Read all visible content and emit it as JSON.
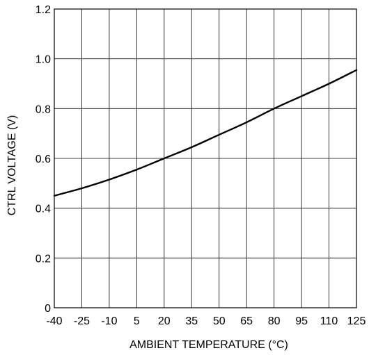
{
  "chart_data": {
    "type": "line",
    "xlabel": "AMBIENT TEMPERATURE (°C)",
    "ylabel": "CTRL VOLTAGE (V)",
    "xlim": [
      -40,
      125
    ],
    "ylim": [
      0,
      1.2
    ],
    "x_ticks": [
      -40,
      -25,
      -10,
      5,
      20,
      35,
      50,
      65,
      80,
      95,
      110,
      125
    ],
    "x_tick_labels": [
      "-40",
      "-25",
      "-10",
      "5",
      "20",
      "35",
      "50",
      "65",
      "80",
      "95",
      "110",
      "125"
    ],
    "y_ticks": [
      0,
      0.2,
      0.4,
      0.6,
      0.8,
      1.0,
      1.2
    ],
    "y_tick_labels": [
      "0",
      "0.2",
      "0.4",
      "0.6",
      "0.8",
      "1.0",
      "1.2"
    ],
    "grid": true,
    "series": [
      {
        "color": "#000000",
        "x": [
          -40,
          -25,
          -10,
          5,
          20,
          35,
          50,
          65,
          80,
          95,
          110,
          125
        ],
        "y": [
          0.45,
          0.48,
          0.515,
          0.555,
          0.6,
          0.645,
          0.695,
          0.745,
          0.8,
          0.85,
          0.9,
          0.955
        ]
      }
    ]
  }
}
